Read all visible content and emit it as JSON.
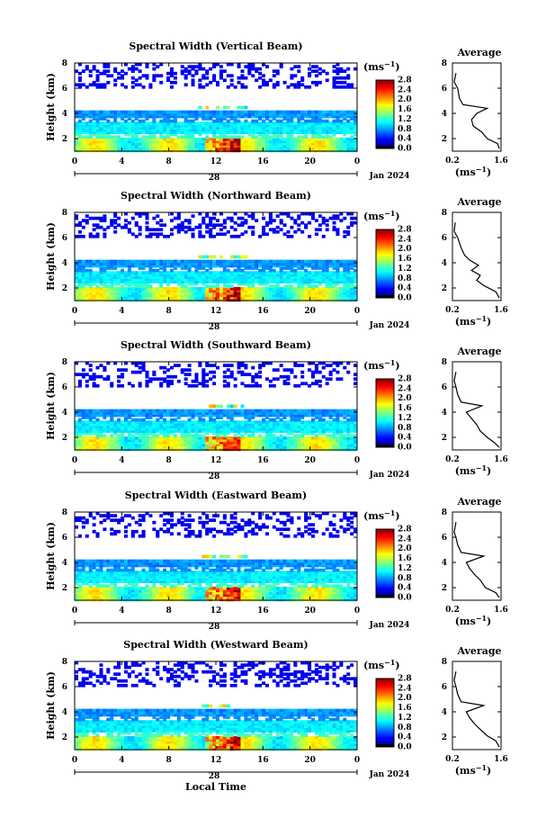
{
  "figure": {
    "x_axis_label": "Local Time",
    "unit_label": "(ms",
    "unit_exp": "−1",
    "average_title": "Average",
    "date_label": "Jan 2024",
    "day_label": "28",
    "height_label": "Height (km)"
  },
  "chart_data": [
    {
      "type": "heatmap",
      "title": "Spectral Width (Vertical Beam)",
      "xlabel": "",
      "ylabel": "Height (km)",
      "x_ticks": [
        "0",
        "4",
        "8",
        "12",
        "16",
        "20",
        "0"
      ],
      "y_ticks": [
        "2",
        "4",
        "6",
        "8"
      ],
      "xlim": [
        0,
        24
      ],
      "ylim": [
        1,
        8
      ],
      "colorbar_ticks": [
        "0.0",
        "0.4",
        "0.8",
        "1.2",
        "1.6",
        "2.0",
        "2.4",
        "2.8"
      ],
      "colorbar_range": [
        0,
        2.8
      ],
      "average_profile": {
        "title": "Average",
        "xlabel": "(ms⁻¹)",
        "x_ticks": [
          "0.2",
          "1.6"
        ],
        "y_ticks": [
          "2",
          "4",
          "6",
          "8"
        ],
        "xlim": [
          0.2,
          1.6
        ],
        "ylim": [
          1,
          8
        ],
        "points": [
          [
            1.55,
            1.2
          ],
          [
            1.5,
            1.6
          ],
          [
            1.2,
            2.0
          ],
          [
            1.05,
            2.5
          ],
          [
            0.8,
            3.0
          ],
          [
            0.75,
            3.5
          ],
          [
            0.9,
            4.0
          ],
          [
            1.2,
            4.4
          ],
          [
            0.5,
            4.7
          ],
          [
            0.4,
            5.2
          ],
          [
            0.35,
            6.0
          ],
          [
            0.25,
            6.5
          ],
          [
            0.3,
            7.2
          ]
        ]
      }
    },
    {
      "type": "heatmap",
      "title": "Spectral Width (Northward Beam)",
      "xlabel": "",
      "ylabel": "Height (km)",
      "x_ticks": [
        "0",
        "4",
        "8",
        "12",
        "16",
        "20",
        "0"
      ],
      "y_ticks": [
        "2",
        "4",
        "6",
        "8"
      ],
      "xlim": [
        0,
        24
      ],
      "ylim": [
        1,
        8
      ],
      "colorbar_ticks": [
        "0.0",
        "0.4",
        "0.8",
        "1.2",
        "1.6",
        "2.0",
        "2.4",
        "2.8"
      ],
      "colorbar_range": [
        0,
        2.8
      ],
      "average_profile": {
        "title": "Average",
        "xlabel": "(ms⁻¹)",
        "x_ticks": [
          "0.2",
          "1.6"
        ],
        "y_ticks": [
          "2",
          "4",
          "6",
          "8"
        ],
        "xlim": [
          0.2,
          1.6
        ],
        "ylim": [
          1,
          8
        ],
        "points": [
          [
            1.55,
            1.2
          ],
          [
            1.45,
            1.7
          ],
          [
            1.1,
            2.2
          ],
          [
            0.9,
            2.6
          ],
          [
            1.0,
            3.0
          ],
          [
            0.75,
            3.4
          ],
          [
            0.95,
            3.8
          ],
          [
            0.7,
            4.2
          ],
          [
            0.55,
            4.6
          ],
          [
            0.45,
            5.2
          ],
          [
            0.35,
            6.0
          ],
          [
            0.25,
            6.5
          ],
          [
            0.28,
            7.2
          ]
        ]
      }
    },
    {
      "type": "heatmap",
      "title": "Spectral Width (Southward Beam)",
      "xlabel": "",
      "ylabel": "Height (km)",
      "x_ticks": [
        "0",
        "4",
        "8",
        "12",
        "16",
        "20",
        "0"
      ],
      "y_ticks": [
        "2",
        "4",
        "6",
        "8"
      ],
      "xlim": [
        0,
        24
      ],
      "ylim": [
        1,
        8
      ],
      "colorbar_ticks": [
        "0.0",
        "0.4",
        "0.8",
        "1.2",
        "1.6",
        "2.0",
        "2.4",
        "2.8"
      ],
      "colorbar_range": [
        0,
        2.8
      ],
      "average_profile": {
        "title": "Average",
        "xlabel": "(ms⁻¹)",
        "x_ticks": [
          "0.2",
          "1.6"
        ],
        "y_ticks": [
          "2",
          "4",
          "6",
          "8"
        ],
        "xlim": [
          0.2,
          1.6
        ],
        "ylim": [
          1,
          8
        ],
        "points": [
          [
            1.55,
            1.2
          ],
          [
            1.4,
            1.6
          ],
          [
            1.2,
            2.0
          ],
          [
            1.0,
            2.5
          ],
          [
            0.9,
            3.0
          ],
          [
            0.75,
            3.5
          ],
          [
            0.6,
            4.0
          ],
          [
            1.05,
            4.5
          ],
          [
            0.45,
            4.8
          ],
          [
            0.35,
            5.4
          ],
          [
            0.3,
            6.0
          ],
          [
            0.25,
            6.5
          ],
          [
            0.3,
            7.2
          ]
        ]
      }
    },
    {
      "type": "heatmap",
      "title": "Spectral Width (Eastward Beam)",
      "xlabel": "",
      "ylabel": "Height (km)",
      "x_ticks": [
        "0",
        "4",
        "8",
        "12",
        "16",
        "20",
        "0"
      ],
      "y_ticks": [
        "2",
        "4",
        "6",
        "8"
      ],
      "xlim": [
        0,
        24
      ],
      "ylim": [
        1,
        8
      ],
      "colorbar_ticks": [
        "0.0",
        "0.4",
        "0.8",
        "1.2",
        "1.6",
        "2.0",
        "2.4",
        "2.8"
      ],
      "colorbar_range": [
        0,
        2.8
      ],
      "average_profile": {
        "title": "Average",
        "xlabel": "(ms⁻¹)",
        "x_ticks": [
          "0.2",
          "1.6"
        ],
        "y_ticks": [
          "2",
          "4",
          "6",
          "8"
        ],
        "xlim": [
          0.2,
          1.6
        ],
        "ylim": [
          1,
          8
        ],
        "points": [
          [
            1.55,
            1.2
          ],
          [
            1.45,
            1.6
          ],
          [
            1.15,
            2.0
          ],
          [
            1.0,
            2.6
          ],
          [
            0.85,
            3.0
          ],
          [
            0.7,
            3.5
          ],
          [
            0.6,
            4.0
          ],
          [
            1.1,
            4.5
          ],
          [
            0.45,
            4.8
          ],
          [
            0.35,
            5.4
          ],
          [
            0.3,
            6.0
          ],
          [
            0.25,
            6.4
          ],
          [
            0.3,
            7.2
          ]
        ]
      }
    },
    {
      "type": "heatmap",
      "title": "Spectral Width (Westward Beam)",
      "xlabel": "Local Time",
      "ylabel": "Height (km)",
      "x_ticks": [
        "0",
        "4",
        "8",
        "12",
        "16",
        "20",
        "0"
      ],
      "y_ticks": [
        "2",
        "4",
        "6",
        "8"
      ],
      "xlim": [
        0,
        24
      ],
      "ylim": [
        1,
        8
      ],
      "colorbar_ticks": [
        "0.0",
        "0.4",
        "0.8",
        "1.2",
        "1.6",
        "2.0",
        "2.4",
        "2.8"
      ],
      "colorbar_range": [
        0,
        2.8
      ],
      "average_profile": {
        "title": "Average",
        "xlabel": "(ms⁻¹)",
        "x_ticks": [
          "0.2",
          "1.6"
        ],
        "y_ticks": [
          "2",
          "4",
          "6",
          "8"
        ],
        "xlim": [
          0.2,
          1.6
        ],
        "ylim": [
          1,
          8
        ],
        "points": [
          [
            1.55,
            1.2
          ],
          [
            1.45,
            1.7
          ],
          [
            1.2,
            2.1
          ],
          [
            1.0,
            2.6
          ],
          [
            0.85,
            3.0
          ],
          [
            0.7,
            3.5
          ],
          [
            0.6,
            4.0
          ],
          [
            1.1,
            4.5
          ],
          [
            0.45,
            4.8
          ],
          [
            0.35,
            5.4
          ],
          [
            0.3,
            6.0
          ],
          [
            0.25,
            6.5
          ],
          [
            0.3,
            7.2
          ]
        ]
      }
    }
  ]
}
